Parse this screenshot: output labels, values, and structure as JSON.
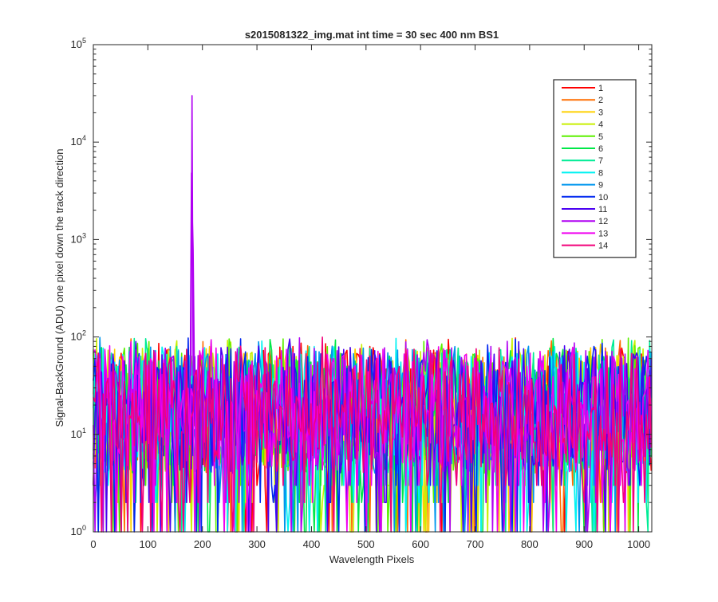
{
  "chart_data": {
    "type": "line",
    "title": "s2015081322_img.mat int time = 30 sec  400 nm BS1",
    "xlabel": "Wavelength Pixels",
    "ylabel": "Signal-BackGround (ADU) one pixel down the track direction",
    "xlim": [
      0,
      1024
    ],
    "ylim": [
      1,
      100000
    ],
    "yscale": "log",
    "x_ticks": [
      0,
      100,
      200,
      300,
      400,
      500,
      600,
      700,
      800,
      900,
      1000
    ],
    "y_ticks": [
      {
        "value": 1,
        "base": "10",
        "exp": "0"
      },
      {
        "value": 10,
        "base": "10",
        "exp": "1"
      },
      {
        "value": 100,
        "base": "10",
        "exp": "2"
      },
      {
        "value": 1000,
        "base": "10",
        "exp": "3"
      },
      {
        "value": 10000,
        "base": "10",
        "exp": "4"
      },
      {
        "value": 100000,
        "base": "10",
        "exp": "5"
      }
    ],
    "grid": false,
    "legend_position": "top-right",
    "noise": {
      "min": 1,
      "typical_peak": 80,
      "max": 100
    },
    "peak": {
      "series": "12",
      "x": 181,
      "y": 30000,
      "width": 3
    },
    "series": [
      {
        "name": "1",
        "color": "#ff0000"
      },
      {
        "name": "2",
        "color": "#ff6e00"
      },
      {
        "name": "3",
        "color": "#ffd000"
      },
      {
        "name": "4",
        "color": "#c8ef00"
      },
      {
        "name": "5",
        "color": "#5cf000"
      },
      {
        "name": "6",
        "color": "#00e848"
      },
      {
        "name": "7",
        "color": "#00ec96"
      },
      {
        "name": "8",
        "color": "#00f2f2"
      },
      {
        "name": "9",
        "color": "#0096ee"
      },
      {
        "name": "10",
        "color": "#0028f0"
      },
      {
        "name": "11",
        "color": "#4a00f2"
      },
      {
        "name": "12",
        "color": "#b000f2"
      },
      {
        "name": "13",
        "color": "#f000f0"
      },
      {
        "name": "14",
        "color": "#f2007a"
      }
    ]
  }
}
